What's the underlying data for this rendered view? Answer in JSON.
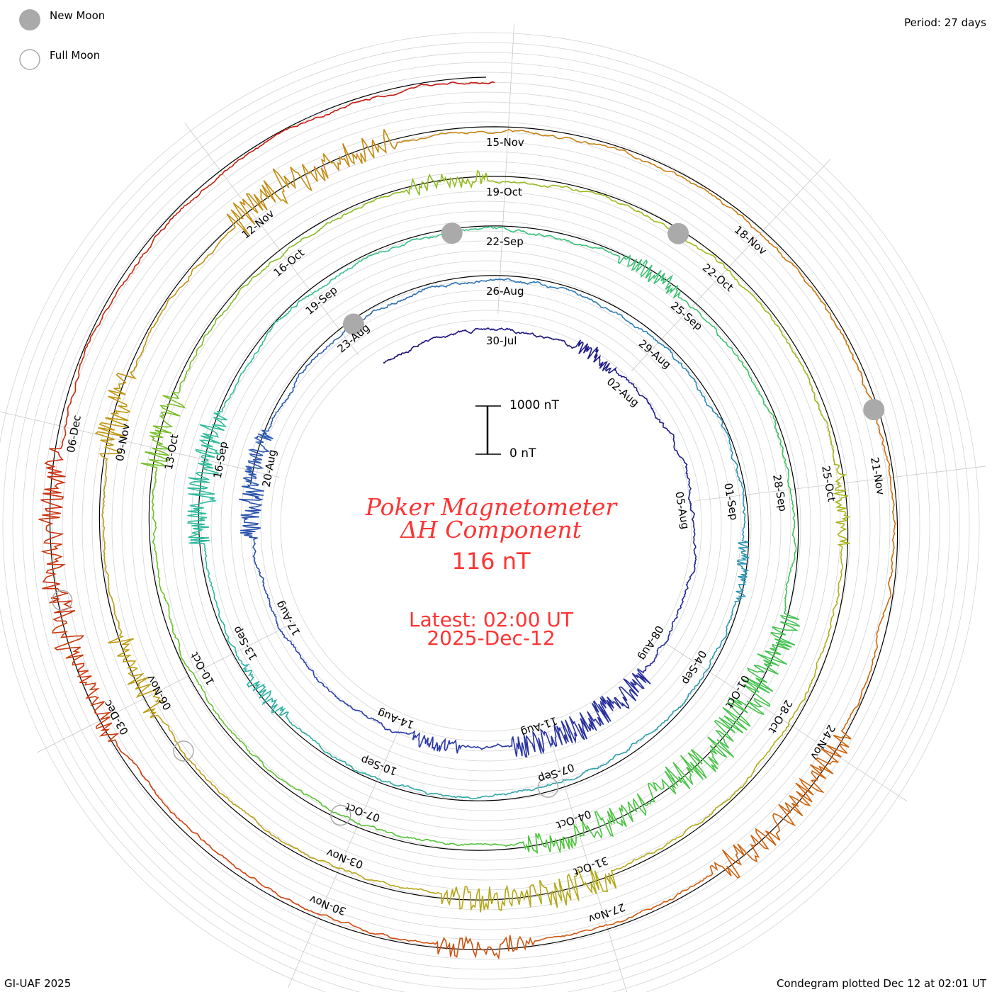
{
  "legend": {
    "new_moon": "New Moon",
    "full_moon": "Full Moon"
  },
  "period_label": "Period: 27 days",
  "footer_left": "GI-UAF 2025",
  "footer_right": "Condegram plotted Dec 12 at 02:01 UT",
  "scale": {
    "top": "1000 nT",
    "bottom": "0 nT"
  },
  "title": {
    "line1": "Poker Magnetometer",
    "line2": "ΔH Component",
    "value": "116 nT",
    "latest": "Latest: 02:00 UT",
    "date": "2025-Dec-12"
  },
  "chart_data": {
    "type": "line",
    "subtype": "condegram-spiral",
    "title": "Poker Magnetometer ΔH Component",
    "period_days": 27,
    "start": "2025-07-27T14:00",
    "end": "2025-12-12T02:00",
    "scale_nT": 1000,
    "latest_value_nT": 116,
    "top_date_labels": [
      "30-Jul",
      "26-Aug",
      "22-Sep",
      "19-Oct",
      "15-Nov"
    ],
    "date_labels": [
      "30-Jul",
      "02-Aug",
      "05-Aug",
      "08-Aug",
      "11-Aug",
      "14-Aug",
      "17-Aug",
      "20-Aug",
      "23-Aug",
      "26-Aug",
      "29-Aug",
      "01-Sep",
      "04-Sep",
      "07-Sep",
      "10-Sep",
      "13-Sep",
      "16-Sep",
      "19-Sep",
      "22-Sep",
      "25-Sep",
      "28-Sep",
      "01-Oct",
      "04-Oct",
      "07-Oct",
      "10-Oct",
      "13-Oct",
      "16-Oct",
      "19-Oct",
      "22-Oct",
      "25-Oct",
      "28-Oct",
      "31-Oct",
      "03-Nov",
      "06-Nov",
      "09-Nov",
      "12-Nov",
      "15-Nov",
      "18-Nov",
      "21-Nov",
      "24-Nov",
      "27-Nov",
      "30-Nov",
      "03-Dec",
      "06-Dec"
    ],
    "new_moons": [
      "2025-08-23",
      "2025-09-21",
      "2025-10-21",
      "2025-11-20"
    ],
    "full_moons": [
      "2025-09-07",
      "2025-10-07",
      "2025-11-05",
      "2025-12-04"
    ],
    "disturbed_days": [
      {
        "date": "2025-08-01",
        "amp": 250
      },
      {
        "date": "2025-08-09",
        "amp": 450
      },
      {
        "date": "2025-08-10",
        "amp": 500
      },
      {
        "date": "2025-08-11",
        "amp": 400
      },
      {
        "date": "2025-08-13",
        "amp": 250
      },
      {
        "date": "2025-08-19",
        "amp": 400
      },
      {
        "date": "2025-08-20",
        "amp": 350
      },
      {
        "date": "2025-09-02",
        "amp": 200
      },
      {
        "date": "2025-09-12",
        "amp": 250
      },
      {
        "date": "2025-09-15",
        "amp": 500
      },
      {
        "date": "2025-09-16",
        "amp": 450
      },
      {
        "date": "2025-09-24",
        "amp": 300
      },
      {
        "date": "2025-09-30",
        "amp": 600
      },
      {
        "date": "2025-10-01",
        "amp": 700
      },
      {
        "date": "2025-10-02",
        "amp": 600
      },
      {
        "date": "2025-10-03",
        "amp": 500
      },
      {
        "date": "2025-10-04",
        "amp": 400
      },
      {
        "date": "2025-10-13",
        "amp": 450
      },
      {
        "date": "2025-10-18",
        "amp": 300
      },
      {
        "date": "2025-10-25",
        "amp": 250
      },
      {
        "date": "2025-10-31",
        "amp": 550
      },
      {
        "date": "2025-11-01",
        "amp": 450
      },
      {
        "date": "2025-11-06",
        "amp": 450
      },
      {
        "date": "2025-11-09",
        "amp": 500
      },
      {
        "date": "2025-11-12",
        "amp": 650
      },
      {
        "date": "2025-11-13",
        "amp": 500
      },
      {
        "date": "2025-11-24",
        "amp": 500
      },
      {
        "date": "2025-11-25",
        "amp": 550
      },
      {
        "date": "2025-11-28",
        "amp": 350
      },
      {
        "date": "2025-12-03",
        "amp": 350
      },
      {
        "date": "2025-12-04",
        "amp": 500
      },
      {
        "date": "2025-12-05",
        "amp": 400
      }
    ],
    "colors": [
      "#1c0e78",
      "#2a3aa8",
      "#2f8fb8",
      "#2fbf98",
      "#4cc43a",
      "#a3b91c",
      "#c09a12",
      "#d0600c",
      "#c41010"
    ]
  }
}
